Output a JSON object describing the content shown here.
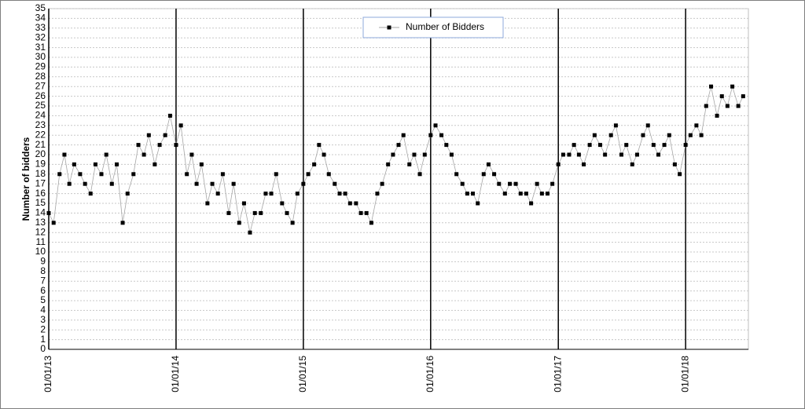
{
  "chart_data": {
    "type": "line",
    "y_label": "Number of bidders",
    "x": [
      "01/01/13",
      "15/01/13",
      "01/02/13",
      "15/02/13",
      "01/03/13",
      "15/03/13",
      "01/04/13",
      "15/04/13",
      "01/05/13",
      "15/05/13",
      "01/06/13",
      "15/06/13",
      "01/07/13",
      "15/07/13",
      "01/08/13",
      "15/08/13",
      "01/09/13",
      "15/09/13",
      "01/10/13",
      "15/10/13",
      "01/11/13",
      "15/11/13",
      "01/12/13",
      "15/12/13",
      "01/01/14",
      "15/01/14",
      "01/02/14",
      "15/02/14",
      "01/03/14",
      "15/03/14",
      "01/04/14",
      "15/04/14",
      "01/05/14",
      "15/05/14",
      "01/06/14",
      "15/06/14",
      "01/07/14",
      "15/07/14",
      "01/08/14",
      "15/08/14",
      "01/09/14",
      "15/09/14",
      "01/10/14",
      "15/10/14",
      "01/11/14",
      "15/11/14",
      "01/12/14",
      "15/12/14",
      "01/01/15",
      "15/01/15",
      "01/02/15",
      "15/02/15",
      "01/03/15",
      "15/03/15",
      "01/04/15",
      "15/04/15",
      "01/05/15",
      "15/05/15",
      "01/06/15",
      "15/06/15",
      "01/07/15",
      "15/07/15",
      "01/08/15",
      "15/08/15",
      "01/09/15",
      "15/09/15",
      "01/10/15",
      "15/10/15",
      "01/11/15",
      "15/11/15",
      "01/12/15",
      "15/12/15",
      "01/01/16",
      "15/01/16",
      "01/02/16",
      "15/02/16",
      "01/03/16",
      "15/03/16",
      "01/04/16",
      "15/04/16",
      "01/05/16",
      "15/05/16",
      "01/06/16",
      "15/06/16",
      "01/07/16",
      "15/07/16",
      "01/08/16",
      "15/08/16",
      "01/09/16",
      "15/09/16",
      "01/10/16",
      "15/10/16",
      "01/11/16",
      "15/11/16",
      "01/12/16",
      "15/12/16",
      "01/01/17",
      "15/01/17",
      "01/02/17",
      "15/02/17",
      "01/03/17",
      "15/03/17",
      "01/04/17",
      "15/04/17",
      "01/05/17",
      "15/05/17",
      "01/06/17",
      "15/06/17",
      "01/07/17",
      "15/07/17",
      "01/08/17",
      "15/08/17",
      "01/09/17",
      "15/09/17",
      "01/10/17",
      "15/10/17",
      "01/11/17",
      "15/11/17",
      "01/12/17",
      "15/12/17",
      "01/01/18",
      "15/01/18",
      "01/02/18",
      "15/02/18",
      "01/03/18",
      "15/03/18",
      "01/04/18",
      "15/04/18",
      "01/05/18",
      "15/05/18",
      "01/06/18",
      "15/06/18"
    ],
    "series": [
      {
        "name": "Number of Bidders",
        "color": "#000000",
        "line_color": "#a6a6a6",
        "values": [
          14,
          13,
          18,
          20,
          17,
          19,
          18,
          17,
          16,
          19,
          18,
          20,
          17,
          19,
          13,
          16,
          18,
          21,
          20,
          22,
          19,
          21,
          22,
          24,
          21,
          23,
          18,
          20,
          17,
          19,
          15,
          17,
          16,
          18,
          14,
          17,
          13,
          15,
          12,
          14,
          14,
          16,
          16,
          18,
          15,
          14,
          13,
          16,
          17,
          18,
          19,
          21,
          20,
          18,
          17,
          16,
          16,
          15,
          15,
          14,
          14,
          13,
          16,
          17,
          19,
          20,
          21,
          22,
          19,
          20,
          18,
          20,
          22,
          23,
          22,
          21,
          20,
          18,
          17,
          16,
          16,
          15,
          18,
          19,
          18,
          17,
          16,
          17,
          17,
          16,
          16,
          15,
          17,
          16,
          16,
          17,
          19,
          20,
          20,
          21,
          20,
          19,
          21,
          22,
          21,
          20,
          22,
          23,
          20,
          21,
          19,
          20,
          22,
          23,
          21,
          20,
          21,
          22,
          19,
          18,
          21,
          22,
          23,
          22,
          25,
          27,
          24,
          26,
          25,
          27,
          25,
          26
        ]
      }
    ],
    "xlim": [
      "01/01/13",
      "30/06/18"
    ],
    "xticks": [
      "01/01/13",
      "01/01/14",
      "01/01/15",
      "01/01/16",
      "01/01/17",
      "01/01/18"
    ],
    "ylim": [
      0,
      35
    ],
    "yticks": [
      0,
      1,
      2,
      3,
      4,
      5,
      6,
      7,
      8,
      9,
      10,
      11,
      12,
      13,
      14,
      15,
      16,
      17,
      18,
      19,
      20,
      21,
      22,
      23,
      24,
      25,
      26,
      27,
      28,
      29,
      30,
      31,
      32,
      33,
      34,
      35
    ],
    "grid": true,
    "legend": "top"
  }
}
